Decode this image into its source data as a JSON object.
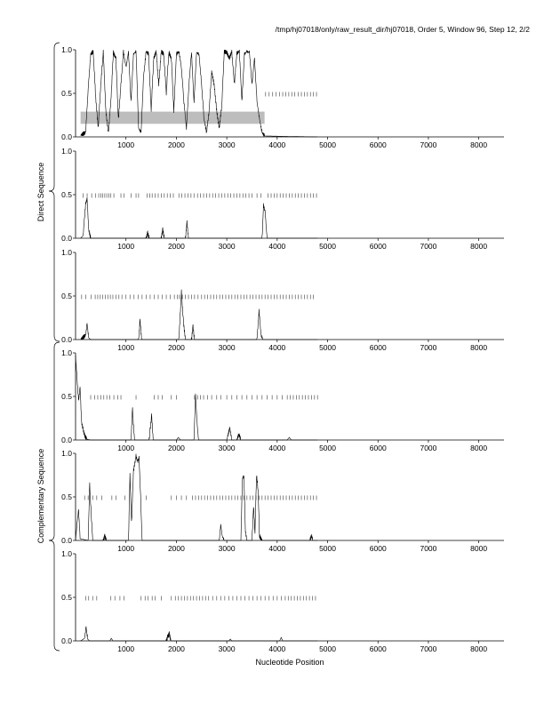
{
  "header": "/tmp/hj07018/only/raw_result_dir/hj07018, Order 5, Window 96, Step 12, 2/2",
  "xlabel": "Nucleotide Position",
  "group_labels": [
    "Direct Sequence",
    "Complementary Sequence"
  ],
  "chart_data": {
    "type": "line",
    "title": "",
    "xlabel": "Nucleotide Position",
    "xlim": [
      0,
      8500
    ],
    "ylim": [
      0,
      1
    ],
    "x_ticks": [
      1000,
      2000,
      3000,
      4000,
      5000,
      6000,
      7000,
      8000
    ],
    "y_ticks": [
      "0.0",
      "0.5",
      "1.0"
    ],
    "grid": false,
    "legend": "none",
    "series_length": 4800,
    "colors": {
      "line": "#000000",
      "marks": "#555555",
      "shade": "#bdbdbd"
    },
    "panels": [
      {
        "group": "Direct Sequence",
        "frame": 1,
        "shaded_region": {
          "x": [
            100,
            3750
          ],
          "y": [
            0.15,
            0.29
          ]
        },
        "orf_marks": {
          "y": 0.49,
          "x": [
            3770,
            3840,
            3910,
            3980,
            4050,
            4110,
            4170,
            4230,
            4290,
            4350,
            4420,
            4480,
            4540,
            4600,
            4660,
            4720,
            4780
          ]
        },
        "segments": [
          [
            100,
            0.02
          ],
          [
            200,
            0.05
          ],
          [
            250,
            0.55
          ],
          [
            300,
            0.95
          ],
          [
            350,
            0.98
          ],
          [
            400,
            0.45
          ],
          [
            450,
            0.1
          ],
          [
            500,
            0.6
          ],
          [
            550,
            0.98
          ],
          [
            600,
            0.3
          ],
          [
            650,
            0.05
          ],
          [
            700,
            0.4
          ],
          [
            750,
            0.97
          ],
          [
            800,
            0.9
          ],
          [
            850,
            0.2
          ],
          [
            900,
            0.6
          ],
          [
            950,
            0.98
          ],
          [
            1000,
            0.8
          ],
          [
            1050,
            0.97
          ],
          [
            1100,
            0.4
          ],
          [
            1150,
            0.95
          ],
          [
            1200,
            0.98
          ],
          [
            1250,
            0.1
          ],
          [
            1300,
            0.05
          ],
          [
            1350,
            0.7
          ],
          [
            1400,
            0.98
          ],
          [
            1450,
            0.95
          ],
          [
            1500,
            0.3
          ],
          [
            1550,
            0.9
          ],
          [
            1600,
            0.98
          ],
          [
            1650,
            0.6
          ],
          [
            1700,
            0.98
          ],
          [
            1750,
            0.95
          ],
          [
            1800,
            0.5
          ],
          [
            1850,
            0.97
          ],
          [
            1900,
            0.9
          ],
          [
            1950,
            0.3
          ],
          [
            2000,
            0.95
          ],
          [
            2050,
            0.98
          ],
          [
            2100,
            0.8
          ],
          [
            2150,
            0.4
          ],
          [
            2200,
            0.1
          ],
          [
            2250,
            0.6
          ],
          [
            2300,
            0.98
          ],
          [
            2350,
            0.4
          ],
          [
            2400,
            0.97
          ],
          [
            2450,
            0.95
          ],
          [
            2500,
            0.6
          ],
          [
            2550,
            0.2
          ],
          [
            2600,
            0.05
          ],
          [
            2650,
            0.3
          ],
          [
            2700,
            0.75
          ],
          [
            2750,
            0.6
          ],
          [
            2800,
            0.3
          ],
          [
            2850,
            0.1
          ],
          [
            2900,
            0.35
          ],
          [
            2950,
            0.98
          ],
          [
            3000,
            0.97
          ],
          [
            3050,
            0.9
          ],
          [
            3100,
            0.98
          ],
          [
            3150,
            0.6
          ],
          [
            3200,
            0.96
          ],
          [
            3250,
            0.98
          ],
          [
            3300,
            0.4
          ],
          [
            3350,
            0.95
          ],
          [
            3400,
            0.98
          ],
          [
            3450,
            0.97
          ],
          [
            3500,
            0.6
          ],
          [
            3550,
            0.9
          ],
          [
            3600,
            0.4
          ],
          [
            3650,
            0.2
          ],
          [
            3700,
            0.05
          ],
          [
            3750,
            0.01
          ],
          [
            4800,
            0.0
          ]
        ]
      },
      {
        "group": "Direct Sequence",
        "frame": 2,
        "orf_marks": {
          "y": 0.49,
          "x": [
            150,
            230,
            320,
            400,
            460,
            500,
            540,
            580,
            620,
            660,
            700,
            760,
            900,
            960,
            1100,
            1200,
            1250,
            1420,
            1470,
            1520,
            1580,
            1640,
            1700,
            1760,
            1820,
            1880,
            1940,
            2050,
            2110,
            2170,
            2230,
            2290,
            2350,
            2420,
            2480,
            2540,
            2600,
            2660,
            2720,
            2780,
            2840,
            2900,
            2960,
            3020,
            3080,
            3140,
            3200,
            3260,
            3320,
            3380,
            3440,
            3500,
            3600,
            3680,
            3820,
            3880,
            3940,
            4000,
            4060,
            4120,
            4180,
            4240,
            4300,
            4360,
            4420,
            4480,
            4540,
            4600,
            4660,
            4720,
            4780
          ]
        },
        "segments": [
          [
            100,
            0.0
          ],
          [
            150,
            0.03
          ],
          [
            200,
            0.4
          ],
          [
            230,
            0.45
          ],
          [
            260,
            0.1
          ],
          [
            300,
            0.0
          ],
          [
            1400,
            0.0
          ],
          [
            1430,
            0.06
          ],
          [
            1460,
            0.0
          ],
          [
            1700,
            0.0
          ],
          [
            1730,
            0.1
          ],
          [
            1760,
            0.0
          ],
          [
            2180,
            0.0
          ],
          [
            2210,
            0.18
          ],
          [
            2240,
            0.0
          ],
          [
            3700,
            0.0
          ],
          [
            3730,
            0.38
          ],
          [
            3760,
            0.3
          ],
          [
            3800,
            0.0
          ],
          [
            4800,
            0.0
          ]
        ]
      },
      {
        "group": "Direct Sequence",
        "frame": 3,
        "orf_marks": {
          "y": 0.49,
          "x": [
            120,
            200,
            310,
            390,
            440,
            490,
            540,
            590,
            640,
            690,
            740,
            800,
            860,
            920,
            1000,
            1080,
            1160,
            1240,
            1320,
            1400,
            1480,
            1560,
            1640,
            1720,
            1800,
            1880,
            1960,
            2020,
            2060,
            2120,
            2180,
            2240,
            2300,
            2360,
            2430,
            2500,
            2560,
            2620,
            2680,
            2740,
            2800,
            2860,
            2920,
            2980,
            3040,
            3100,
            3160,
            3220,
            3280,
            3340,
            3400,
            3460,
            3520,
            3580,
            3640,
            3700,
            3760,
            3820,
            3880,
            3940,
            4000,
            4060,
            4120,
            4180,
            4240,
            4300,
            4360,
            4420,
            4480,
            4540,
            4600,
            4660,
            4720
          ]
        },
        "segments": [
          [
            100,
            0.0
          ],
          [
            200,
            0.05
          ],
          [
            230,
            0.18
          ],
          [
            260,
            0.02
          ],
          [
            300,
            0.0
          ],
          [
            1250,
            0.0
          ],
          [
            1280,
            0.22
          ],
          [
            1310,
            0.0
          ],
          [
            2050,
            0.0
          ],
          [
            2100,
            0.55
          ],
          [
            2140,
            0.2
          ],
          [
            2180,
            0.0
          ],
          [
            2300,
            0.0
          ],
          [
            2330,
            0.15
          ],
          [
            2360,
            0.0
          ],
          [
            3600,
            0.0
          ],
          [
            3640,
            0.33
          ],
          [
            3680,
            0.05
          ],
          [
            3720,
            0.0
          ],
          [
            4800,
            0.0
          ]
        ]
      },
      {
        "group": "Complementary Sequence",
        "frame": 1,
        "orf_marks": {
          "y": 0.49,
          "x": [
            300,
            380,
            440,
            500,
            560,
            620,
            680,
            760,
            840,
            900,
            1200,
            1560,
            1640,
            1720,
            1900,
            2000,
            2360,
            2420,
            2480,
            2540,
            2620,
            2700,
            2800,
            2880,
            3000,
            3100,
            3200,
            3300,
            3400,
            3500,
            3600,
            3700,
            3800,
            3900,
            4000,
            4100,
            4200,
            4260,
            4320,
            4380,
            4440,
            4500,
            4560,
            4620,
            4680,
            4740,
            4800
          ]
        },
        "segments": [
          [
            0,
            0.97
          ],
          [
            30,
            0.7
          ],
          [
            60,
            0.45
          ],
          [
            90,
            0.6
          ],
          [
            120,
            0.2
          ],
          [
            150,
            0.12
          ],
          [
            180,
            0.05
          ],
          [
            220,
            0.01
          ],
          [
            300,
            0.0
          ],
          [
            1100,
            0.0
          ],
          [
            1130,
            0.35
          ],
          [
            1170,
            0.0
          ],
          [
            1460,
            0.0
          ],
          [
            1480,
            0.12
          ],
          [
            1510,
            0.28
          ],
          [
            1540,
            0.0
          ],
          [
            2000,
            0.0
          ],
          [
            2040,
            0.03
          ],
          [
            2080,
            0.0
          ],
          [
            2350,
            0.0
          ],
          [
            2380,
            0.52
          ],
          [
            2410,
            0.2
          ],
          [
            2440,
            0.0
          ],
          [
            3000,
            0.0
          ],
          [
            3060,
            0.14
          ],
          [
            3100,
            0.0
          ],
          [
            3200,
            0.0
          ],
          [
            3240,
            0.07
          ],
          [
            3280,
            0.0
          ],
          [
            4200,
            0.0
          ],
          [
            4240,
            0.03
          ],
          [
            4280,
            0.0
          ],
          [
            4800,
            0.0
          ]
        ]
      },
      {
        "group": "Complementary Sequence",
        "frame": 2,
        "orf_marks": {
          "y": 0.49,
          "x": [
            180,
            250,
            340,
            420,
            520,
            720,
            800,
            980,
            1400,
            1900,
            2000,
            2100,
            2200,
            2320,
            2380,
            2440,
            2500,
            2560,
            2620,
            2680,
            2740,
            2800,
            2860,
            2920,
            2980,
            3040,
            3100,
            3160,
            3220,
            3280,
            3340,
            3400,
            3460,
            3520,
            3580,
            3640,
            3700,
            3760,
            3820,
            3880,
            3940,
            4000,
            4060,
            4120,
            4180,
            4240,
            4300,
            4360,
            4420,
            4480,
            4540,
            4600,
            4660,
            4720,
            4780
          ]
        },
        "segments": [
          [
            0,
            0.0
          ],
          [
            30,
            0.2
          ],
          [
            60,
            0.35
          ],
          [
            90,
            0.02
          ],
          [
            250,
            0.0
          ],
          [
            280,
            0.65
          ],
          [
            310,
            0.3
          ],
          [
            340,
            0.0
          ],
          [
            550,
            0.0
          ],
          [
            580,
            0.05
          ],
          [
            610,
            0.0
          ],
          [
            1050,
            0.0
          ],
          [
            1080,
            0.75
          ],
          [
            1110,
            0.2
          ],
          [
            1150,
            0.8
          ],
          [
            1200,
            0.97
          ],
          [
            1230,
            0.9
          ],
          [
            1260,
            0.95
          ],
          [
            1290,
            0.5
          ],
          [
            1320,
            0.0
          ],
          [
            2850,
            0.0
          ],
          [
            2880,
            0.18
          ],
          [
            2910,
            0.05
          ],
          [
            2950,
            0.0
          ],
          [
            3280,
            0.0
          ],
          [
            3310,
            0.7
          ],
          [
            3340,
            0.75
          ],
          [
            3370,
            0.1
          ],
          [
            3400,
            0.0
          ],
          [
            3500,
            0.0
          ],
          [
            3530,
            0.4
          ],
          [
            3560,
            0.1
          ],
          [
            3590,
            0.75
          ],
          [
            3620,
            0.6
          ],
          [
            3650,
            0.05
          ],
          [
            3700,
            0.0
          ],
          [
            4650,
            0.0
          ],
          [
            4680,
            0.06
          ],
          [
            4710,
            0.0
          ],
          [
            4800,
            0.0
          ]
        ]
      },
      {
        "group": "Complementary Sequence",
        "frame": 3,
        "orf_marks": {
          "y": 0.49,
          "x": [
            200,
            260,
            340,
            420,
            700,
            780,
            880,
            960,
            1300,
            1380,
            1440,
            1520,
            1580,
            1700,
            1900,
            1980,
            2040,
            2100,
            2160,
            2220,
            2280,
            2340,
            2400,
            2460,
            2520,
            2580,
            2640,
            2720,
            2800,
            2880,
            2960,
            3040,
            3120,
            3200,
            3280,
            3360,
            3440,
            3520,
            3600,
            3680,
            3760,
            3840,
            3920,
            4000,
            4080,
            4160,
            4220,
            4280,
            4340,
            4400,
            4460,
            4520,
            4580,
            4640,
            4700,
            4760
          ]
        },
        "segments": [
          [
            100,
            0.0
          ],
          [
            180,
            0.03
          ],
          [
            210,
            0.16
          ],
          [
            240,
            0.02
          ],
          [
            280,
            0.0
          ],
          [
            680,
            0.0
          ],
          [
            710,
            0.03
          ],
          [
            740,
            0.0
          ],
          [
            1800,
            0.0
          ],
          [
            1830,
            0.05
          ],
          [
            1860,
            0.08
          ],
          [
            1890,
            0.0
          ],
          [
            3040,
            0.0
          ],
          [
            3070,
            0.02
          ],
          [
            3100,
            0.0
          ],
          [
            4050,
            0.0
          ],
          [
            4080,
            0.04
          ],
          [
            4110,
            0.0
          ],
          [
            4800,
            0.0
          ]
        ]
      }
    ]
  }
}
